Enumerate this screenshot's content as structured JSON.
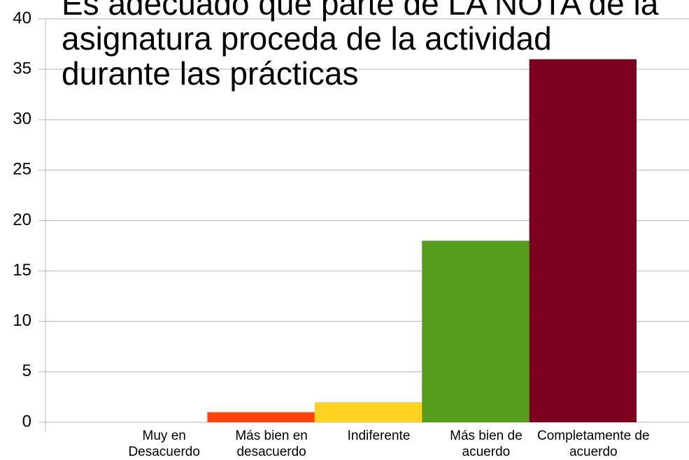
{
  "chart_data": {
    "type": "bar",
    "title": "Es adecuado que parte de LA NOTA de la asignatura proceda de la actividad durante las prácticas",
    "categories": [
      "Muy en Desacuerdo",
      "Más bien en desacuerdo",
      "Indiferente",
      "Más bien de acuerdo",
      "Completamente de acuerdo"
    ],
    "values": [
      0,
      1,
      2,
      18,
      36
    ],
    "colors": [
      "#004586",
      "#ff420e",
      "#ffd320",
      "#579d1c",
      "#7e0021"
    ],
    "ylim": [
      0,
      40
    ],
    "yticks": [
      0,
      5,
      10,
      15,
      20,
      25,
      30,
      35,
      40
    ],
    "grid": true
  }
}
